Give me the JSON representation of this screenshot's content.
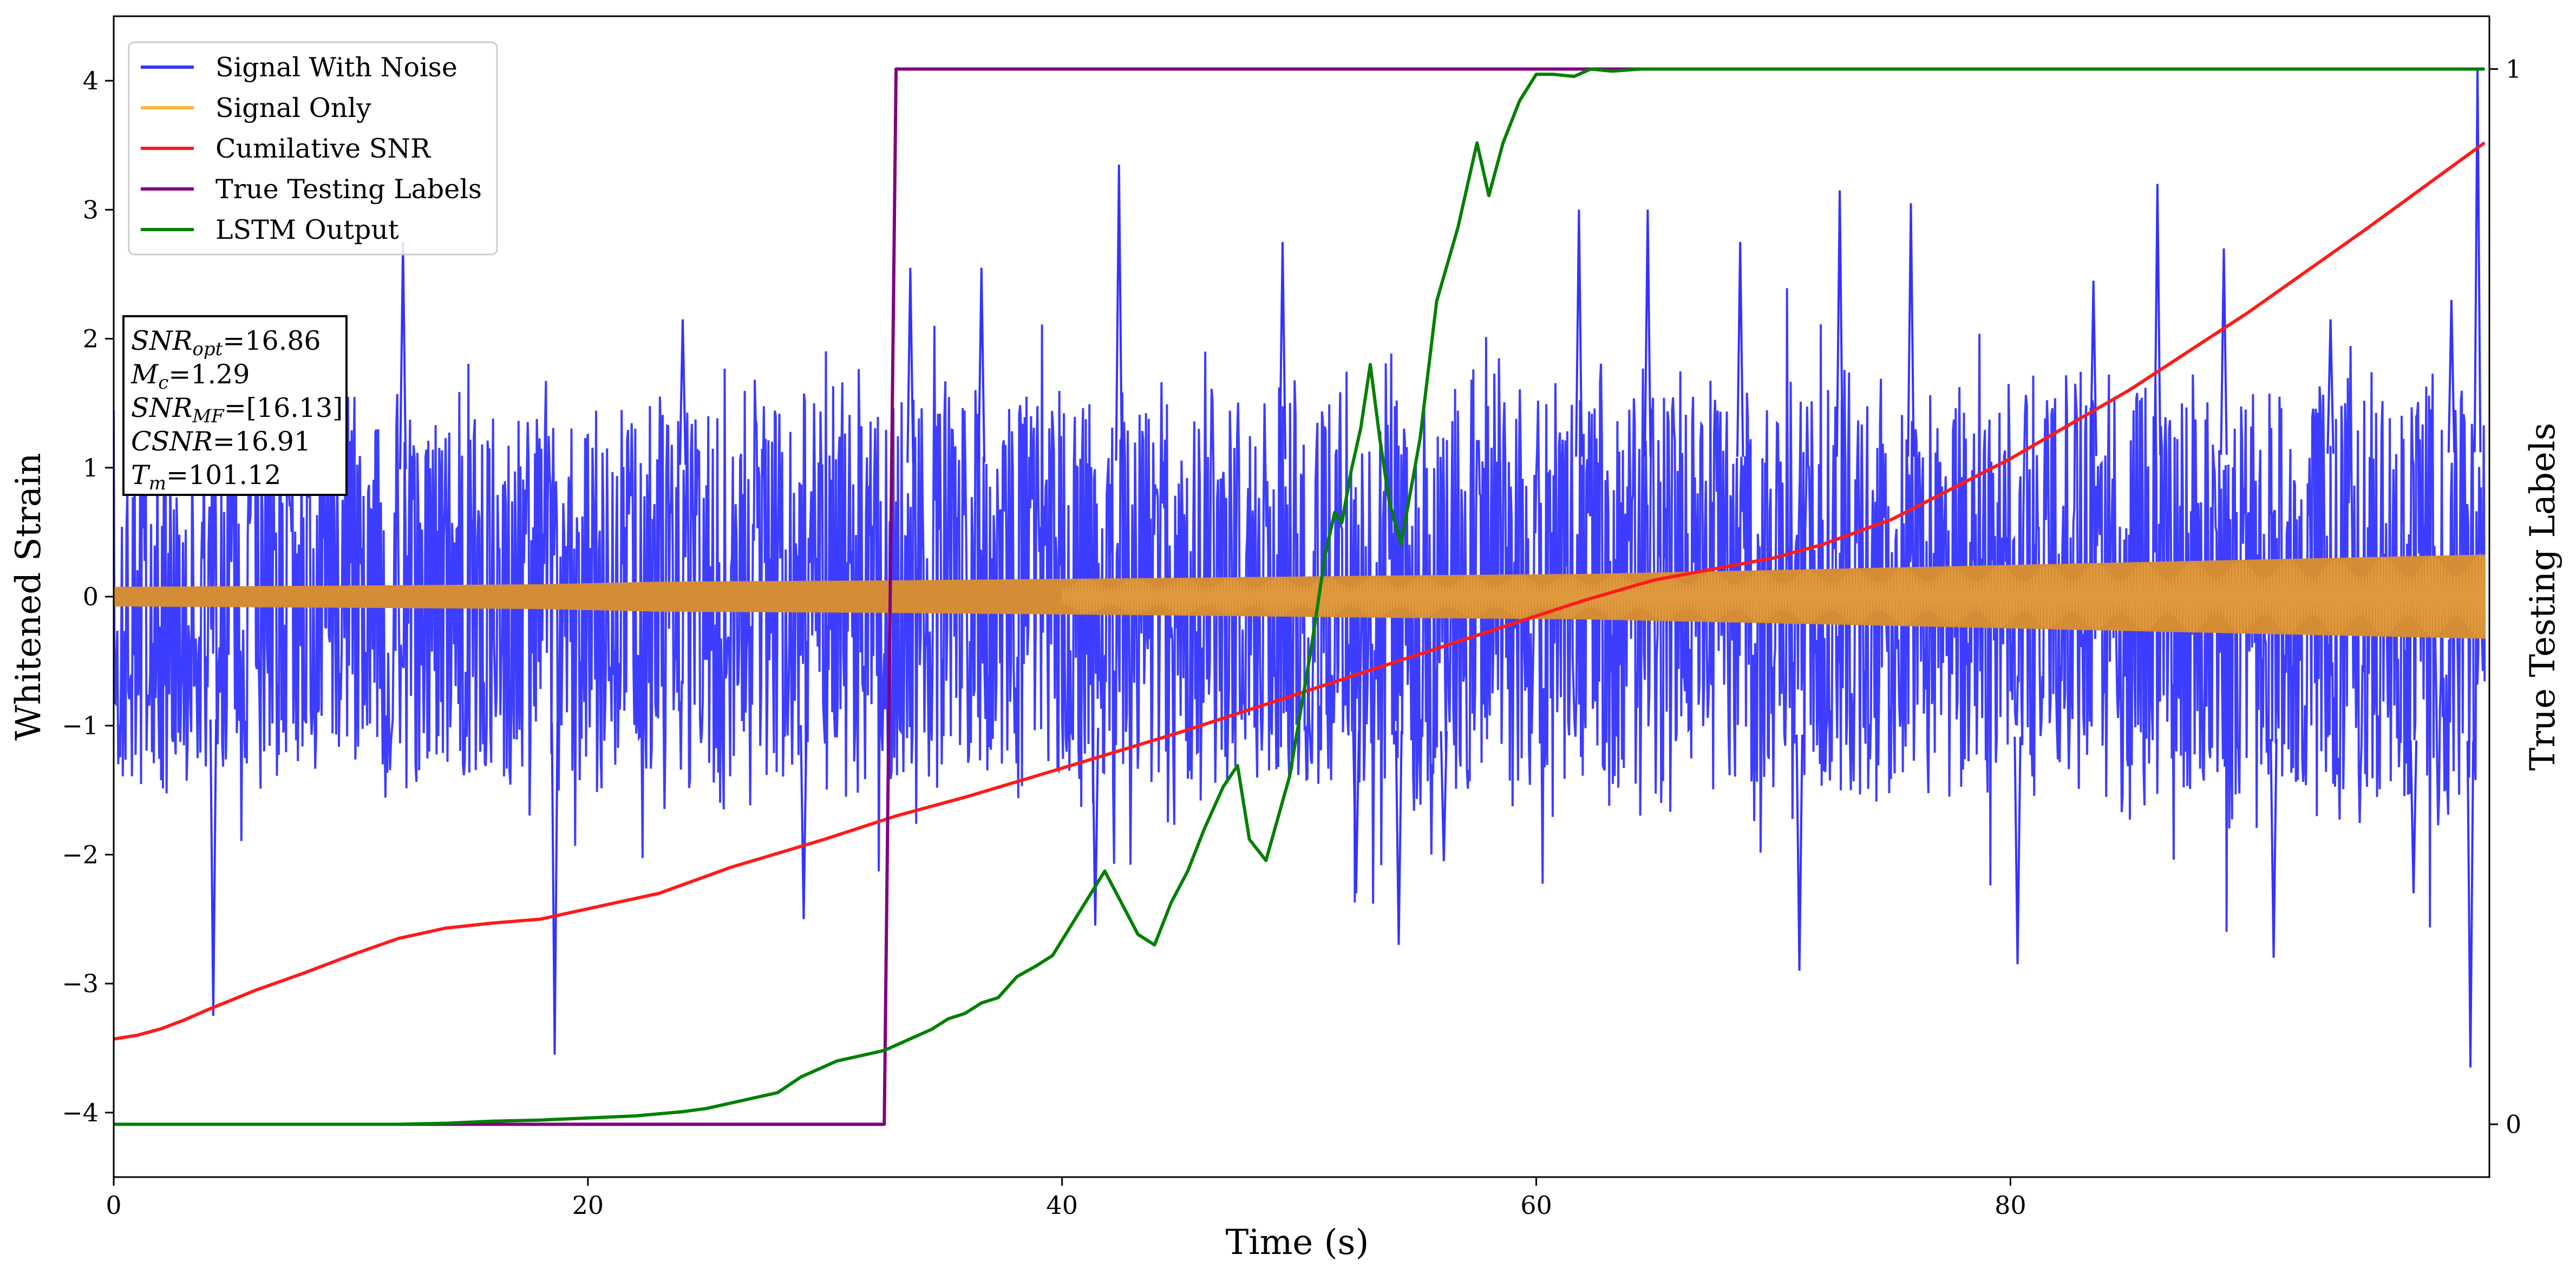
{
  "chart_data": {
    "type": "line",
    "xlabel": "Time (s)",
    "ylabel": "Whitened Strain",
    "ylabel_right": "True Testing Labels",
    "xlim": [
      0,
      100.2
    ],
    "ylim": [
      -4.5,
      4.5
    ],
    "ylim_right": [
      -0.05,
      1.05
    ],
    "x_ticks": [
      "0",
      "20",
      "40",
      "60",
      "80"
    ],
    "x_tick_values": [
      0,
      20,
      40,
      60,
      80
    ],
    "y_ticks": [
      "−4",
      "−3",
      "−2",
      "−1",
      "0",
      "1",
      "2",
      "3",
      "4"
    ],
    "y_tick_values": [
      -4,
      -3,
      -2,
      -1,
      0,
      1,
      2,
      3,
      4
    ],
    "y_right_ticks": [
      "0",
      "1"
    ],
    "y_right_tick_values": [
      0,
      1
    ],
    "grid": false,
    "legend_position": "top-left",
    "legend": [
      {
        "label": "Signal With Noise",
        "color": "#3333ff"
      },
      {
        "label": "Signal Only",
        "color": "#ffb833"
      },
      {
        "label": "Cumilative SNR",
        "color": "#ff1a1a"
      },
      {
        "label": "True Testing Labels",
        "color": "#800080"
      },
      {
        "label": "LSTM Output",
        "color": "#008000"
      }
    ],
    "annotation": [
      {
        "var": "SNR",
        "sub": "opt",
        "val": "=16.86"
      },
      {
        "var": "M",
        "sub": "c",
        "val": "=1.29"
      },
      {
        "var": "SNR",
        "sub": "MF",
        "val": "=[16.13]"
      },
      {
        "var": "CSNR",
        "sub": "",
        "val": "=16.91"
      },
      {
        "var": "T",
        "sub": "m",
        "val": "=101.12"
      }
    ],
    "series": [
      {
        "name": "Signal With Noise",
        "color": "#3333ff",
        "axis": "left",
        "style": "dense-noise",
        "band_upper": [
          [
            0,
            1.35
          ],
          [
            20,
            1.45
          ],
          [
            40,
            1.5
          ],
          [
            60,
            1.55
          ],
          [
            80,
            1.55
          ],
          [
            100,
            1.6
          ]
        ],
        "band_lower": [
          [
            0,
            -1.35
          ],
          [
            20,
            -1.4
          ],
          [
            40,
            -1.45
          ],
          [
            60,
            -1.5
          ],
          [
            80,
            -1.55
          ],
          [
            100,
            -1.6
          ]
        ],
        "peaks": [
          [
            1.8,
            1.85
          ],
          [
            4.2,
            -3.25
          ],
          [
            8.2,
            2.0
          ],
          [
            12.2,
            2.75
          ],
          [
            18.6,
            -3.55
          ],
          [
            24.0,
            2.15
          ],
          [
            29.1,
            -2.5
          ],
          [
            33.6,
            2.55
          ],
          [
            36.6,
            2.55
          ],
          [
            41.4,
            -2.55
          ],
          [
            42.4,
            3.35
          ],
          [
            49.3,
            2.75
          ],
          [
            52.4,
            -2.3
          ],
          [
            54.2,
            -2.7
          ],
          [
            56.1,
            -2.05
          ],
          [
            61.8,
            3.0
          ],
          [
            64.7,
            3.0
          ],
          [
            68.6,
            2.75
          ],
          [
            71.1,
            -2.9
          ],
          [
            72.8,
            3.15
          ],
          [
            75.8,
            3.05
          ],
          [
            80.3,
            -2.85
          ],
          [
            83.5,
            2.45
          ],
          [
            86.2,
            3.2
          ],
          [
            89.0,
            2.7
          ],
          [
            91.1,
            -2.8
          ],
          [
            93.5,
            2.15
          ],
          [
            97.0,
            -2.3
          ],
          [
            98.6,
            2.3
          ],
          [
            99.4,
            -3.65
          ],
          [
            99.7,
            4.1
          ]
        ]
      },
      {
        "name": "Signal Only",
        "color": "#ffb833",
        "axis": "left",
        "style": "envelope",
        "amplitude": [
          [
            0,
            0.07
          ],
          [
            10,
            0.08
          ],
          [
            18,
            0.09
          ],
          [
            23,
            0.11
          ],
          [
            33,
            0.12
          ],
          [
            45,
            0.14
          ],
          [
            55,
            0.16
          ],
          [
            62,
            0.17
          ],
          [
            70,
            0.2
          ],
          [
            80,
            0.24
          ],
          [
            90,
            0.28
          ],
          [
            100,
            0.32
          ]
        ]
      },
      {
        "name": "Cumilative SNR",
        "color": "#ff1a1a",
        "axis": "left",
        "x": [
          0,
          1,
          2,
          3,
          4,
          6,
          8,
          10,
          12,
          14,
          16,
          18,
          20,
          23,
          26,
          30,
          33,
          36,
          40,
          45,
          50,
          55,
          60,
          62,
          65,
          70,
          72,
          75,
          80,
          85,
          90,
          95,
          100
        ],
        "y": [
          -3.43,
          -3.4,
          -3.35,
          -3.28,
          -3.2,
          -3.05,
          -2.92,
          -2.78,
          -2.65,
          -2.57,
          -2.53,
          -2.5,
          -2.42,
          -2.3,
          -2.1,
          -1.88,
          -1.7,
          -1.55,
          -1.33,
          -1.05,
          -0.75,
          -0.45,
          -0.15,
          -0.03,
          0.13,
          0.3,
          0.4,
          0.6,
          1.07,
          1.6,
          2.2,
          2.85,
          3.52
        ]
      },
      {
        "name": "True Testing Labels",
        "color": "#800080",
        "axis": "right",
        "x": [
          0,
          32.5,
          33.0,
          100
        ],
        "y": [
          0,
          0,
          1,
          1
        ]
      },
      {
        "name": "LSTM Output",
        "color": "#008000",
        "axis": "right",
        "x": [
          0,
          10,
          12,
          14,
          16,
          18,
          20,
          22,
          24,
          25,
          26,
          27,
          28,
          29,
          29.5,
          30.5,
          31.5,
          32.5,
          33.5,
          34.5,
          35.2,
          35.9,
          36.6,
          37.3,
          38.1,
          38.9,
          39.6,
          40.7,
          41.8,
          42.5,
          43.2,
          43.9,
          44.6,
          45.3,
          46.0,
          46.8,
          47.4,
          47.9,
          48.6,
          49.6,
          50.5,
          51.1,
          51.5,
          51.8,
          52.2,
          52.6,
          53.0,
          53.4,
          53.8,
          54.3,
          55.1,
          55.8,
          56.7,
          57.5,
          58.0,
          58.6,
          59.3,
          60.0,
          60.7,
          61.6,
          62.3,
          63.2,
          64.4,
          67.0,
          100
        ],
        "y": [
          0,
          0,
          0,
          0.001,
          0.003,
          0.004,
          0.006,
          0.008,
          0.012,
          0.015,
          0.02,
          0.025,
          0.03,
          0.045,
          0.05,
          0.06,
          0.065,
          0.07,
          0.08,
          0.09,
          0.1,
          0.105,
          0.115,
          0.12,
          0.14,
          0.15,
          0.16,
          0.2,
          0.24,
          0.21,
          0.18,
          0.17,
          0.21,
          0.24,
          0.28,
          0.32,
          0.34,
          0.27,
          0.25,
          0.33,
          0.45,
          0.54,
          0.58,
          0.57,
          0.62,
          0.66,
          0.72,
          0.65,
          0.59,
          0.55,
          0.65,
          0.78,
          0.85,
          0.93,
          0.88,
          0.93,
          0.97,
          0.995,
          0.995,
          0.993,
          1.0,
          0.998,
          1.0,
          1.0,
          1.0
        ]
      }
    ]
  }
}
